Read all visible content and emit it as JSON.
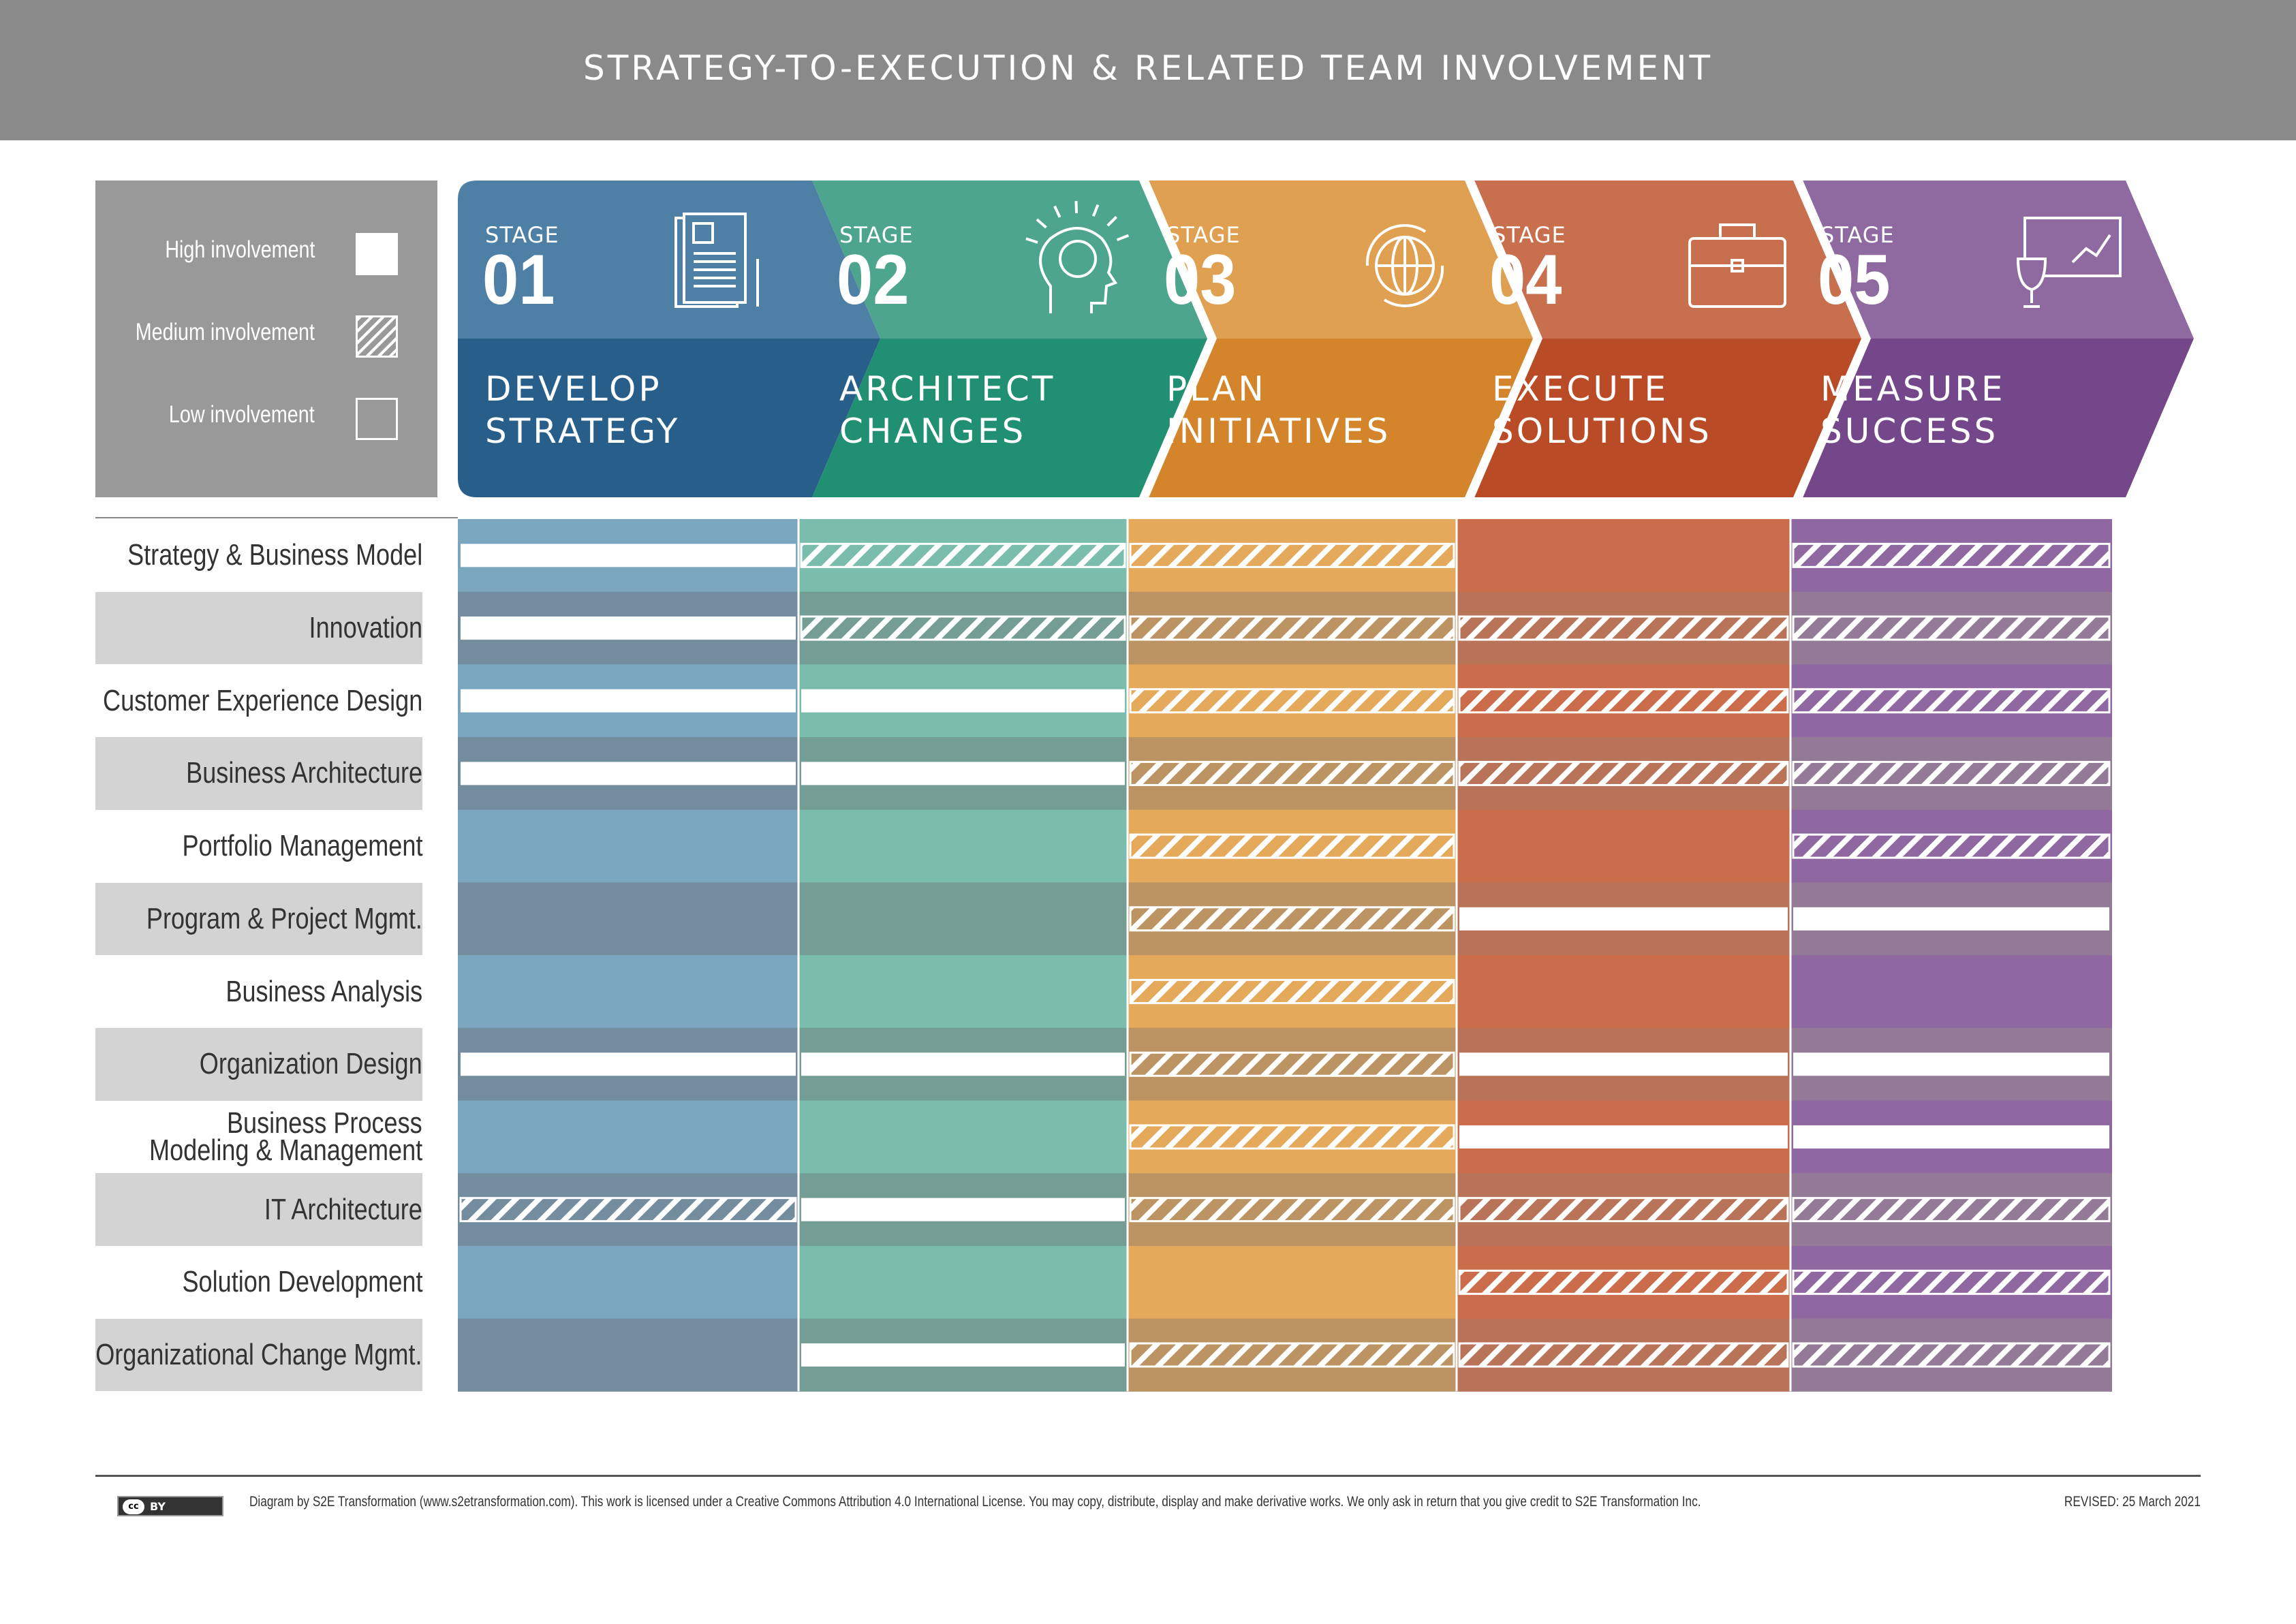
{
  "title": "STRATEGY-TO-EXECUTION & RELATED TEAM INVOLVEMENT",
  "legend": {
    "high": "High involvement",
    "medium": "Medium involvement",
    "low": "Low involvement"
  },
  "stages": [
    {
      "label": "STAGE",
      "number": "01",
      "name_line1": "DEVELOP",
      "name_line2": "STRATEGY",
      "icon": "document-icon",
      "color_light": "#4e80a6",
      "color_dark": "#285f8a",
      "band": "#7ba6bf",
      "band_dark": "#738d9f"
    },
    {
      "label": "STAGE",
      "number": "02",
      "name_line1": "ARCHITECT",
      "name_line2": "CHANGES",
      "icon": "brain-icon",
      "color_light": "#4ea58d",
      "color_dark": "#218f72",
      "band": "#7abdac",
      "band_dark": "#749e93"
    },
    {
      "label": "STAGE",
      "number": "03",
      "name_line1": "PLAN",
      "name_line2": "INITIATIVES",
      "icon": "globe-icon",
      "color_light": "#e0a052",
      "color_dark": "#d4852b",
      "band": "#e4a95b",
      "band_dark": "#bc9463"
    },
    {
      "label": "STAGE",
      "number": "04",
      "name_line1": "EXECUTE",
      "name_line2": "SOLUTIONS",
      "icon": "briefcase-icon",
      "color_light": "#c86f4e",
      "color_dark": "#b94c26",
      "band": "#cb6d4a",
      "band_dark": "#b97359"
    },
    {
      "label": "STAGE",
      "number": "05",
      "name_line1": "MEASURE",
      "name_line2": "SUCCESS",
      "icon": "trophy-chart-icon",
      "color_light": "#8f6aa0",
      "color_dark": "#73478a",
      "band": "#8f68a1",
      "band_dark": "#937b98"
    }
  ],
  "rows": [
    {
      "label": [
        "Strategy & Business Model"
      ],
      "levels": [
        "H",
        "M",
        "M",
        "L",
        "M"
      ]
    },
    {
      "label": [
        "Innovation"
      ],
      "levels": [
        "H",
        "M",
        "M",
        "M",
        "M"
      ]
    },
    {
      "label": [
        "Customer Experience Design"
      ],
      "levels": [
        "H",
        "H",
        "M",
        "M",
        "M"
      ]
    },
    {
      "label": [
        "Business Architecture"
      ],
      "levels": [
        "H",
        "H",
        "M",
        "M",
        "M"
      ]
    },
    {
      "label": [
        "Portfolio Management"
      ],
      "levels": [
        "L",
        "L",
        "M",
        "L",
        "M"
      ]
    },
    {
      "label": [
        "Program & Project Mgmt."
      ],
      "levels": [
        "L",
        "L",
        "M",
        "H",
        "H"
      ]
    },
    {
      "label": [
        "Business Analysis"
      ],
      "levels": [
        "L",
        "L",
        "M",
        "L",
        "L"
      ]
    },
    {
      "label": [
        "Organization Design"
      ],
      "levels": [
        "H",
        "H",
        "M",
        "H",
        "H"
      ]
    },
    {
      "label": [
        "Business Process",
        "Modeling & Management"
      ],
      "levels": [
        "L",
        "L",
        "M",
        "H",
        "H"
      ]
    },
    {
      "label": [
        "IT Architecture"
      ],
      "levels": [
        "M",
        "H",
        "M",
        "M",
        "M"
      ]
    },
    {
      "label": [
        "Solution Development"
      ],
      "levels": [
        "L",
        "L",
        "L",
        "M",
        "M"
      ]
    },
    {
      "label": [
        "Organizational Change Mgmt."
      ],
      "levels": [
        "L",
        "H",
        "M",
        "M",
        "M"
      ]
    }
  ],
  "footer": {
    "license_badge": "BY",
    "license_icon": "cc-icon",
    "credit": "Diagram by S2E Transformation (www.s2etransformation.com). This work is licensed under a Creative Commons Attribution 4.0 International License. You may copy, distribute, display and make derivative works. We only ask in return that you give credit to S2E Transformation Inc.",
    "revised": "REVISED: 25 March 2021"
  }
}
